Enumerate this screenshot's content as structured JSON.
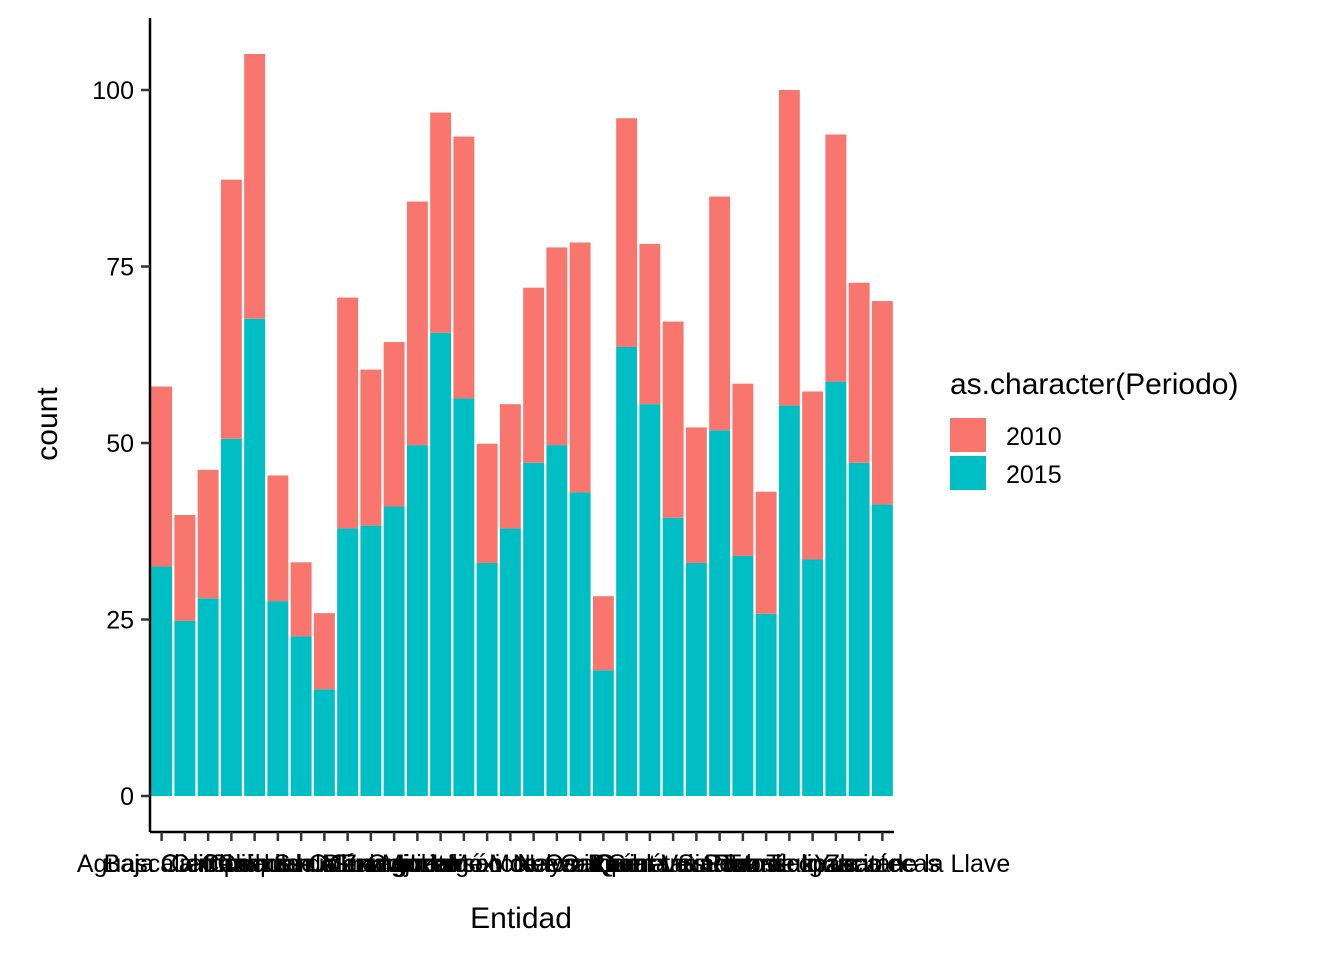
{
  "chart_data": {
    "type": "bar",
    "stacked": true,
    "xlabel": "Entidad",
    "ylabel": "count",
    "ylim": [
      -4,
      110
    ],
    "yticks": [
      0,
      25,
      50,
      75,
      100
    ],
    "grid": false,
    "legend_position": "right",
    "legend_title": "as.character(Periodo)",
    "categories": [
      "Aguascalientes",
      "Baja California",
      "Baja California Sur",
      "Campeche",
      "Chiapas",
      "Chihuahua",
      "Ciudad de México",
      "Coahuila de Zaragoza",
      "Colima",
      "Durango",
      "Guanajuato",
      "Guerrero",
      "Hidalgo",
      "Jalisco",
      "México",
      "Michoacán de Ocampo",
      "Morelos",
      "Nayarit",
      "Nuevo León",
      "Oaxaca",
      "Puebla",
      "Querétaro",
      "Quintana Roo",
      "San Luis Potosí",
      "Sinaloa",
      "Sonora",
      "Tabasco",
      "Tamaulipas",
      "Tlaxcala",
      "Veracruz de Ignacio de la Llave",
      "Yucatán",
      "Zacatecas"
    ],
    "visible_tick_labels": [
      "Aguascalientes",
      "Baja California",
      "Baja California Sur",
      "Campeche",
      "Chiapas",
      "Chihuahua",
      "Ciudad de México",
      "Coahuila de Zaragoza",
      "Colima",
      "Durango",
      "Guanajuato",
      "Guerrero",
      "Hidalgo",
      "Jalisco",
      "México",
      "Michoacán de Ocampo",
      "Morelos",
      "Nayarit",
      "Nuevo León",
      "Oaxaca",
      "Puebla",
      "Querétaro",
      "Quintana Roo",
      "San Luis Potosí",
      "Sinaloa",
      "Sonora",
      "Tabasco",
      "Tamaulipas",
      "Tlaxcala",
      "Veracruz de Ignacio de la Llave",
      "Yucatán",
      "Zacatecas"
    ],
    "series": [
      {
        "name": "2015",
        "color": "#00BFC4",
        "values": [
          32.5,
          24.8,
          28,
          50.6,
          67.6,
          27.6,
          22.6,
          15.1,
          37.9,
          38.3,
          41,
          49.7,
          65.6,
          56.3,
          33,
          37.9,
          47.2,
          49.7,
          43,
          17.8,
          63.6,
          55.5,
          39.4,
          33,
          51.8,
          34,
          25.8,
          55.3,
          33.5,
          58.7,
          47.2,
          41.3
        ]
      },
      {
        "name": "2010",
        "color": "#F8766D",
        "values": [
          25.5,
          15,
          18.2,
          36.7,
          37.5,
          17.8,
          10.5,
          10.8,
          32.7,
          22.1,
          23.3,
          34.5,
          31.2,
          37.1,
          16.9,
          17.6,
          24.8,
          28,
          35.4,
          10.5,
          32.4,
          22.7,
          27.8,
          19.2,
          33.1,
          24.4,
          17.3,
          44.7,
          23.8,
          35,
          25.5,
          28.8
        ]
      }
    ]
  }
}
